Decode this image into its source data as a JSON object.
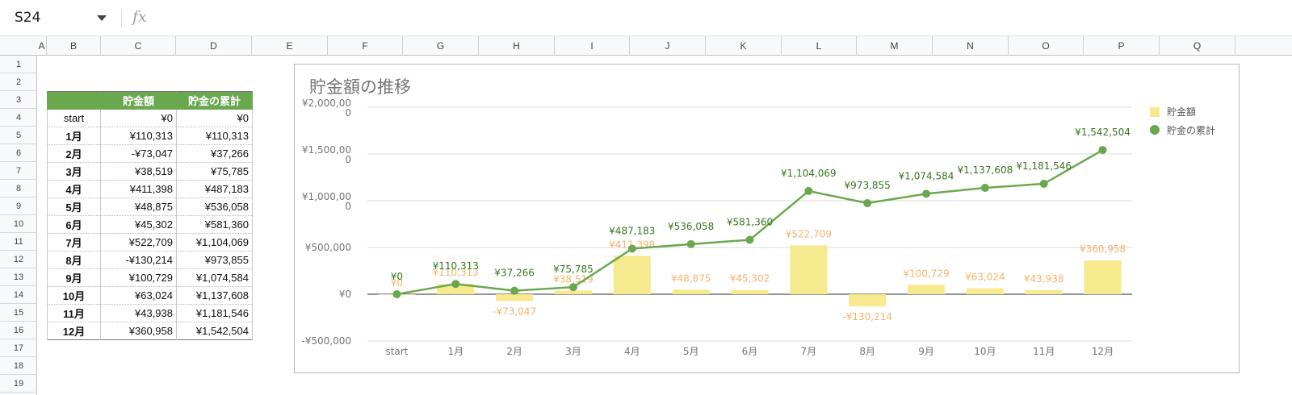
{
  "name_box": {
    "ref": "S24"
  },
  "formula_bar": {
    "fx_label": "fx",
    "value": ""
  },
  "columns": [
    "A",
    "B",
    "C",
    "D",
    "E",
    "F",
    "G",
    "H",
    "I",
    "J",
    "K",
    "L",
    "M",
    "N",
    "O",
    "P",
    "Q"
  ],
  "rows": [
    "1",
    "2",
    "3",
    "4",
    "5",
    "6",
    "7",
    "8",
    "9",
    "10",
    "11",
    "12",
    "13",
    "14",
    "15",
    "16",
    "17",
    "18",
    "19"
  ],
  "table": {
    "headers": [
      "",
      "貯金額",
      "貯金の累計"
    ],
    "rows": [
      [
        "start",
        "¥0",
        "¥0"
      ],
      [
        "1月",
        "¥110,313",
        "¥110,313"
      ],
      [
        "2月",
        "-¥73,047",
        "¥37,266"
      ],
      [
        "3月",
        "¥38,519",
        "¥75,785"
      ],
      [
        "4月",
        "¥411,398",
        "¥487,183"
      ],
      [
        "5月",
        "¥48,875",
        "¥536,058"
      ],
      [
        "6月",
        "¥45,302",
        "¥581,360"
      ],
      [
        "7月",
        "¥522,709",
        "¥1,104,069"
      ],
      [
        "8月",
        "-¥130,214",
        "¥973,855"
      ],
      [
        "9月",
        "¥100,729",
        "¥1,074,584"
      ],
      [
        "10月",
        "¥63,024",
        "¥1,137,608"
      ],
      [
        "11月",
        "¥43,938",
        "¥1,181,546"
      ],
      [
        "12月",
        "¥360,958",
        "¥1,542,504"
      ]
    ]
  },
  "chart_data": {
    "type": "bar",
    "title": "貯金額の推移",
    "categories": [
      "start",
      "1月",
      "2月",
      "3月",
      "4月",
      "5月",
      "6月",
      "7月",
      "8月",
      "9月",
      "10月",
      "11月",
      "12月"
    ],
    "y_ticks": [
      {
        "value": 2000000,
        "label": [
          "¥2,000,00",
          "0"
        ]
      },
      {
        "value": 1500000,
        "label": [
          "¥1,500,00",
          "0"
        ]
      },
      {
        "value": 1000000,
        "label": [
          "¥1,000,00",
          "0"
        ]
      },
      {
        "value": 500000,
        "label": [
          "¥500,000"
        ]
      },
      {
        "value": 0,
        "label": [
          "¥0"
        ]
      },
      {
        "value": -500000,
        "label": [
          "-¥500,000"
        ]
      }
    ],
    "ylim": [
      -500000,
      2000000
    ],
    "series": [
      {
        "name": "貯金額",
        "kind": "bar",
        "color": "#f7e98e",
        "label_color": "#f6b26b",
        "values": [
          0,
          110313,
          -73047,
          38519,
          411398,
          48875,
          45302,
          522709,
          -130214,
          100729,
          63024,
          43938,
          360958
        ],
        "labels": [
          "¥0",
          "¥110,313",
          "-¥73,047",
          "¥38,519",
          "¥411,398",
          "¥48,875",
          "¥45,302",
          "¥522,709",
          "-¥130,214",
          "¥100,729",
          "¥63,024",
          "¥43,938",
          "¥360,958"
        ]
      },
      {
        "name": "貯金の累計",
        "kind": "line",
        "color": "#6aa84f",
        "label_color": "#38761d",
        "values": [
          0,
          110313,
          37266,
          75785,
          487183,
          536058,
          581360,
          1104069,
          973855,
          1074584,
          1137608,
          1181546,
          1542504
        ],
        "labels": [
          "¥0",
          "¥110,313",
          "¥37,266",
          "¥75,785",
          "¥487,183",
          "¥536,058",
          "¥581,360",
          "¥1,104,069",
          "¥973,855",
          "¥1,074,584",
          "¥1,137,608",
          "¥1,181,546",
          "¥1,542,504"
        ]
      }
    ],
    "legend_position": "right",
    "grid": true
  }
}
